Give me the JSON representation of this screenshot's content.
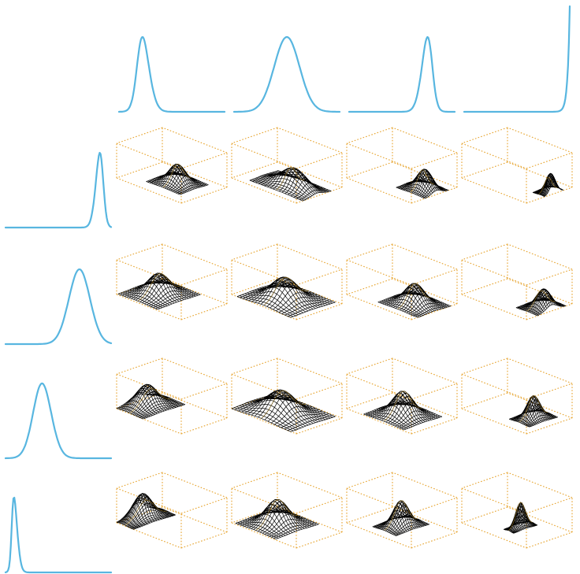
{
  "figure": {
    "description_free": true,
    "colors": {
      "marginal_curve": "#58b6e0",
      "bounding_box": "#e6a22a",
      "wireframe": "#000000",
      "wireframe_hidden": "#d9a21f",
      "background": "#ffffff"
    },
    "top_marginals": [
      {
        "id": "col-1",
        "shape": "peak",
        "peak_position": 0.18,
        "spread": 0.08,
        "skew": 0.6
      },
      {
        "id": "col-2",
        "shape": "peak",
        "peak_position": 0.5,
        "spread": 0.12,
        "skew": 0.0
      },
      {
        "id": "col-3",
        "shape": "peak",
        "peak_position": 0.78,
        "spread": 0.07,
        "skew": -0.6
      },
      {
        "id": "col-4",
        "shape": "edge-rise",
        "peak_position": 1.0,
        "spread": 0.02,
        "skew": -1.0
      }
    ],
    "left_marginals": [
      {
        "id": "row-1",
        "shape": "peak",
        "peak_position": 0.92,
        "spread": 0.05,
        "skew": -0.6
      },
      {
        "id": "row-2",
        "shape": "peak",
        "peak_position": 0.7,
        "spread": 0.1,
        "skew": 0.0
      },
      {
        "id": "row-3",
        "shape": "peak",
        "peak_position": 0.3,
        "spread": 0.1,
        "skew": 0.3
      },
      {
        "id": "row-4",
        "shape": "peak",
        "peak_position": 0.06,
        "spread": 0.04,
        "skew": 0.9
      }
    ],
    "surface_grid": {
      "rows": 4,
      "cols": 4,
      "cells": [
        [
          {
            "center": [
              0.55,
              0.55
            ],
            "spread": [
              0.1,
              0.12
            ],
            "height": 0.55
          },
          {
            "center": [
              0.65,
              0.45
            ],
            "spread": [
              0.18,
              0.12
            ],
            "height": 0.55
          },
          {
            "center": [
              0.82,
              0.55
            ],
            "spread": [
              0.1,
              0.1
            ],
            "height": 0.6
          },
          {
            "center": [
              0.95,
              0.6
            ],
            "spread": [
              0.05,
              0.08
            ],
            "height": 0.55
          }
        ],
        [
          {
            "center": [
              0.3,
              0.5
            ],
            "spread": [
              0.12,
              0.18
            ],
            "height": 0.6
          },
          {
            "center": [
              0.5,
              0.45
            ],
            "spread": [
              0.16,
              0.2
            ],
            "height": 0.65
          },
          {
            "center": [
              0.7,
              0.5
            ],
            "spread": [
              0.12,
              0.14
            ],
            "height": 0.6
          },
          {
            "center": [
              0.88,
              0.55
            ],
            "spread": [
              0.08,
              0.12
            ],
            "height": 0.55
          }
        ],
        [
          {
            "center": [
              0.15,
              0.45
            ],
            "spread": [
              0.1,
              0.18
            ],
            "height": 0.6
          },
          {
            "center": [
              0.45,
              0.45
            ],
            "spread": [
              0.18,
              0.2
            ],
            "height": 0.65
          },
          {
            "center": [
              0.55,
              0.45
            ],
            "spread": [
              0.12,
              0.16
            ],
            "height": 0.7
          },
          {
            "center": [
              0.72,
              0.55
            ],
            "spread": [
              0.06,
              0.12
            ],
            "height": 0.65
          }
        ],
        [
          {
            "center": [
              0.08,
              0.45
            ],
            "spread": [
              0.07,
              0.18
            ],
            "height": 0.7
          },
          {
            "center": [
              0.35,
              0.5
            ],
            "spread": [
              0.12,
              0.18
            ],
            "height": 0.7
          },
          {
            "center": [
              0.45,
              0.55
            ],
            "spread": [
              0.07,
              0.14
            ],
            "height": 0.72
          },
          {
            "center": [
              0.52,
              0.55
            ],
            "spread": [
              0.03,
              0.1
            ],
            "height": 0.72
          }
        ]
      ]
    }
  }
}
